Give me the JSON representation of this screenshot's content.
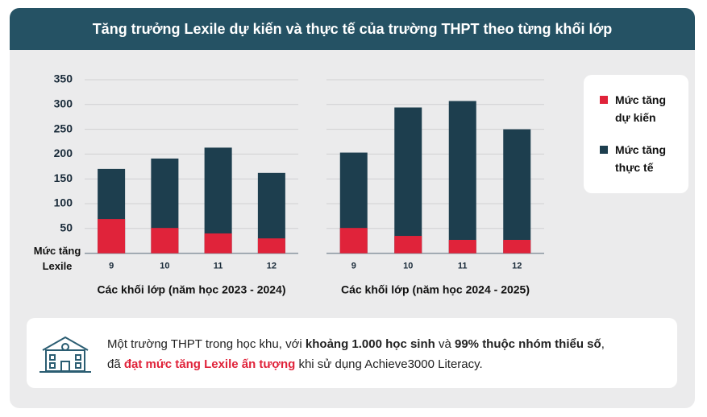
{
  "header": {
    "title": "Tăng trưởng Lexile dự kiến và thực tế của trường THPT theo từng khối lớp"
  },
  "chart_data": [
    {
      "type": "bar",
      "x_label": "Các khối lớp (năm học 2023 - 2024)",
      "y_label": "Mức tăng Lexile",
      "categories": [
        "9",
        "10",
        "11",
        "12"
      ],
      "series": [
        {
          "name": "Mức tăng thực tế",
          "color": "#1d3e4e",
          "values": [
            170,
            191,
            213,
            162
          ]
        },
        {
          "name": "Mức tăng dự kiến",
          "color": "#e0233a",
          "values": [
            69,
            51,
            40,
            30
          ]
        }
      ],
      "ylim": [
        0,
        350
      ],
      "yticks": [
        50,
        100,
        150,
        200,
        250,
        300,
        350
      ],
      "grid": true
    },
    {
      "type": "bar",
      "x_label": "Các khối lớp (năm học 2024 - 2025)",
      "categories": [
        "9",
        "10",
        "11",
        "12"
      ],
      "series": [
        {
          "color": "#1d3e4e",
          "values": [
            203,
            294,
            307,
            250
          ]
        },
        {
          "color": "#e0233a",
          "values": [
            51,
            35,
            27,
            27
          ]
        }
      ],
      "ylim": [
        0,
        350
      ],
      "yticks": [
        50,
        100,
        150,
        200,
        250,
        300,
        350
      ],
      "grid": true
    }
  ],
  "footer": {
    "parts": [
      "Một trường THPT trong học khu, với ",
      "khoảng 1.000 học sinh",
      " và ",
      "99% thuộc nhóm thiểu số",
      ", ",
      "đã ",
      "đạt mức tăng Lexile ấn tượng",
      " khi sử dụng Achieve3000 Literacy."
    ]
  }
}
